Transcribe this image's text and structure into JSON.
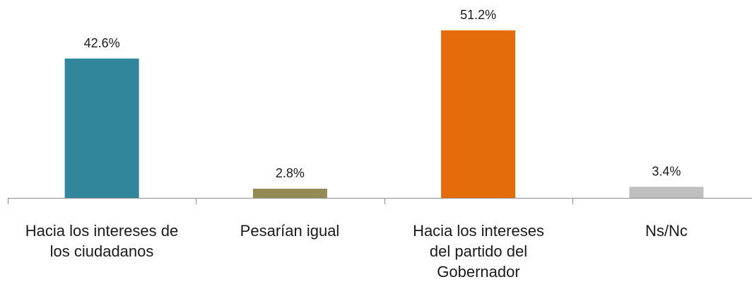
{
  "chart_data": {
    "type": "bar",
    "categories": [
      "Hacia los intereses de\nlos ciudadanos",
      "Pesarían igual",
      "Hacia los intereses\ndel partido del\nGobernador",
      "Ns/Nc"
    ],
    "values": [
      42.6,
      2.8,
      51.2,
      3.4
    ],
    "value_labels": [
      "42.6%",
      "2.8%",
      "51.2%",
      "3.4%"
    ],
    "colors": [
      "#31869b",
      "#948a54",
      "#e46c0a",
      "#bfbfbf"
    ],
    "ylim": [
      0,
      51.2
    ],
    "grid": false,
    "legend": "none",
    "title": "",
    "xlabel": "",
    "ylabel": ""
  }
}
